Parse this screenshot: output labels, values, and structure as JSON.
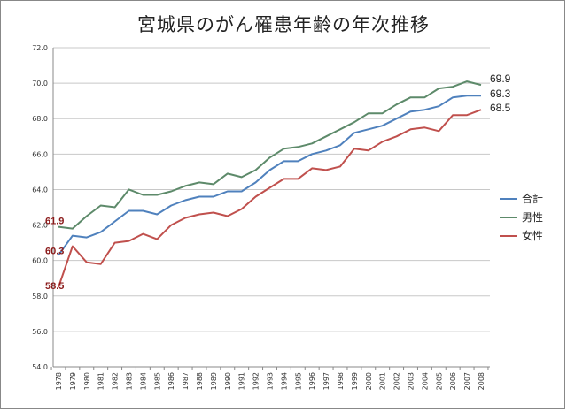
{
  "title": "宮城県のがん罹患年齢の年次推移",
  "chart_data": {
    "type": "line",
    "title": "宮城県のがん罹患年齢の年次推移",
    "ylim": [
      54.0,
      72.0
    ],
    "y_ticks": [
      "54.0",
      "56.0",
      "58.0",
      "60.0",
      "62.0",
      "64.0",
      "66.0",
      "68.0",
      "70.0",
      "72.0"
    ],
    "grid": "horizontal",
    "legend_position": "right",
    "categories": [
      "1978",
      "1979",
      "1980",
      "1981",
      "1982",
      "1983",
      "1984",
      "1985",
      "1986",
      "1987",
      "1988",
      "1989",
      "1990",
      "1991",
      "1992",
      "1993",
      "1994",
      "1995",
      "1996",
      "1997",
      "1998",
      "1999",
      "2000",
      "2001",
      "2002",
      "2003",
      "2004",
      "2005",
      "2006",
      "2007",
      "2008"
    ],
    "series": [
      {
        "name": "合計",
        "color": "#4f81bd",
        "values": [
          60.3,
          61.4,
          61.3,
          61.6,
          62.2,
          62.8,
          62.8,
          62.6,
          63.1,
          63.4,
          63.6,
          63.6,
          63.9,
          63.9,
          64.4,
          65.1,
          65.6,
          65.6,
          66.0,
          66.2,
          66.5,
          67.2,
          67.4,
          67.6,
          68.0,
          68.4,
          68.5,
          68.7,
          69.2,
          69.3,
          69.3
        ]
      },
      {
        "name": "男性",
        "color": "#5d8a6a",
        "values": [
          61.9,
          61.8,
          62.5,
          63.1,
          63.0,
          64.0,
          63.7,
          63.7,
          63.9,
          64.2,
          64.4,
          64.3,
          64.9,
          64.7,
          65.1,
          65.8,
          66.3,
          66.4,
          66.6,
          67.0,
          67.4,
          67.8,
          68.3,
          68.3,
          68.8,
          69.2,
          69.2,
          69.7,
          69.8,
          70.1,
          69.9
        ]
      },
      {
        "name": "女性",
        "color": "#c0504d",
        "values": [
          58.5,
          60.8,
          59.9,
          59.8,
          61.0,
          61.1,
          61.5,
          61.2,
          62.0,
          62.4,
          62.6,
          62.7,
          62.5,
          62.9,
          63.6,
          64.1,
          64.6,
          64.6,
          65.2,
          65.1,
          65.3,
          66.3,
          66.2,
          66.7,
          67.0,
          67.4,
          67.5,
          67.3,
          68.2,
          68.2,
          68.5
        ]
      }
    ],
    "start_labels": [
      {
        "series": "男性",
        "text": "61.9"
      },
      {
        "series": "合計",
        "text": "60.3"
      },
      {
        "series": "女性",
        "text": "58.5"
      }
    ],
    "end_labels": [
      {
        "series": "男性",
        "text": "69.9"
      },
      {
        "series": "合計",
        "text": "69.3"
      },
      {
        "series": "女性",
        "text": "68.5"
      }
    ]
  }
}
